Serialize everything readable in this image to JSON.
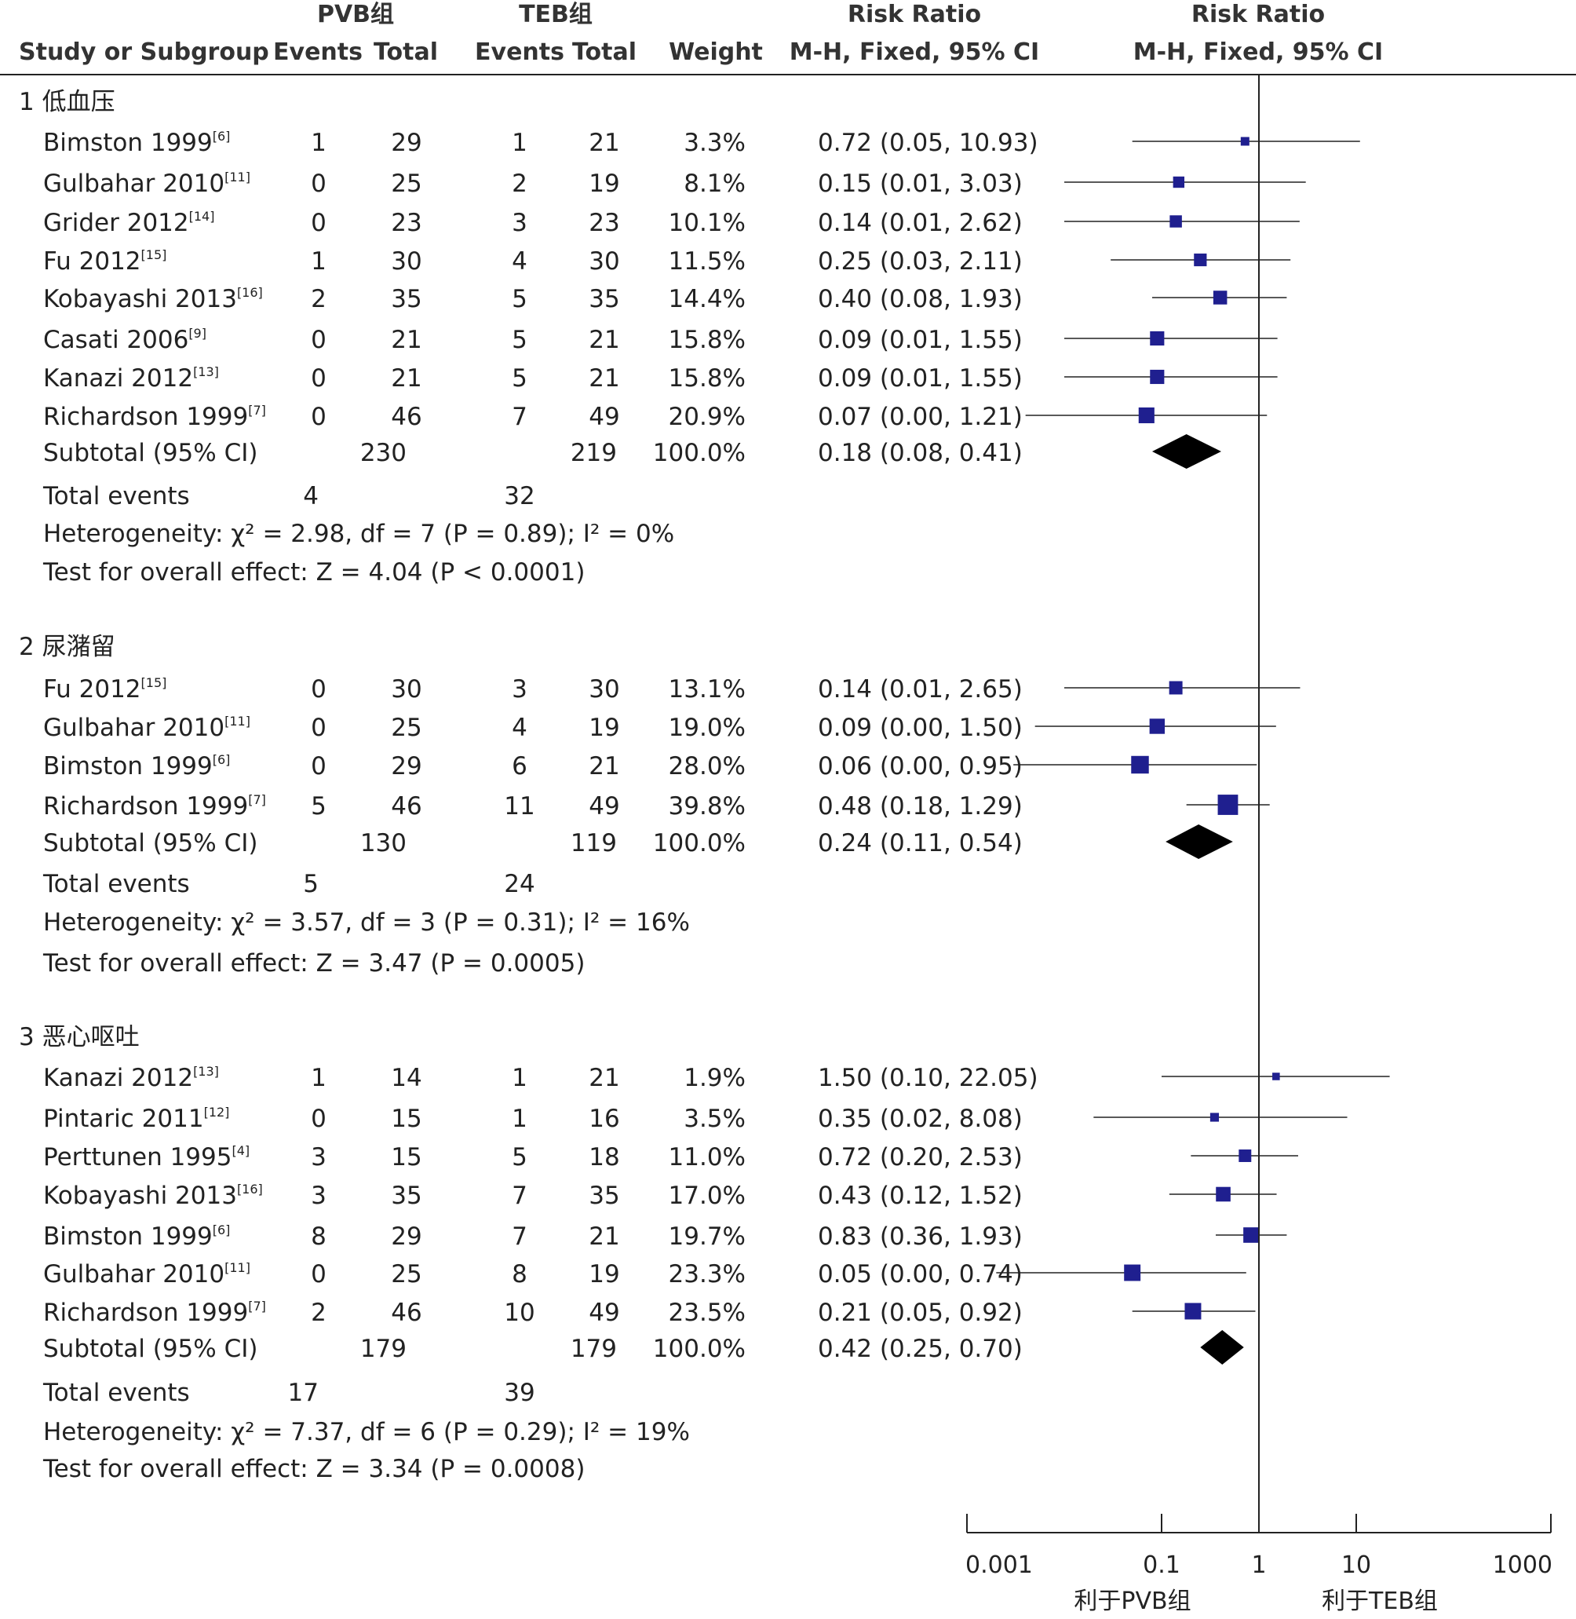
{
  "chart_data": {
    "type": "forest",
    "x_scale": "log",
    "xlim": [
      0.001,
      1000
    ],
    "x_ticks": [
      "0.001",
      "0.1",
      "1",
      "10",
      "1000"
    ],
    "favours_left": "利于PVB组",
    "favours_right": "利于TEB组",
    "headers": {
      "group1": "PVB组",
      "group2": "TEB组",
      "study": "Study or Subgroup",
      "events": "Events",
      "total": "Total",
      "weight": "Weight",
      "rr_title": "Risk Ratio",
      "rr_method": "M-H, Fixed, 95% CI"
    },
    "subgroups": [
      {
        "label": "1 低血压",
        "studies": [
          {
            "name": "Bimston 1999",
            "ref": "[6]",
            "e1": "1",
            "n1": "29",
            "e2": "1",
            "n2": "21",
            "weight": "3.3%",
            "ci_text": "0.72 (0.05, 10.93)",
            "rr": 0.72,
            "lo": 0.05,
            "hi": 10.93,
            "w": 3.3
          },
          {
            "name": "Gulbahar 2010",
            "ref": "[11]",
            "e1": "0",
            "n1": "25",
            "e2": "2",
            "n2": "19",
            "weight": "8.1%",
            "ci_text": "0.15 (0.01, 3.03)",
            "rr": 0.15,
            "lo": 0.01,
            "hi": 3.03,
            "w": 8.1
          },
          {
            "name": "Grider 2012",
            "ref": "[14]",
            "e1": "0",
            "n1": "23",
            "e2": "3",
            "n2": "23",
            "weight": "10.1%",
            "ci_text": "0.14 (0.01, 2.62)",
            "rr": 0.14,
            "lo": 0.01,
            "hi": 2.62,
            "w": 10.1
          },
          {
            "name": "Fu 2012",
            "ref": "[15]",
            "e1": "1",
            "n1": "30",
            "e2": "4",
            "n2": "30",
            "weight": "11.5%",
            "ci_text": "0.25 (0.03, 2.11)",
            "rr": 0.25,
            "lo": 0.03,
            "hi": 2.11,
            "w": 11.5
          },
          {
            "name": "Kobayashi 2013",
            "ref": "[16]",
            "e1": "2",
            "n1": "35",
            "e2": "5",
            "n2": "35",
            "weight": "14.4%",
            "ci_text": "0.40 (0.08, 1.93)",
            "rr": 0.4,
            "lo": 0.08,
            "hi": 1.93,
            "w": 14.4
          },
          {
            "name": "Casati 2006",
            "ref": "[9]",
            "e1": "0",
            "n1": "21",
            "e2": "5",
            "n2": "21",
            "weight": "15.8%",
            "ci_text": "0.09 (0.01, 1.55)",
            "rr": 0.09,
            "lo": 0.01,
            "hi": 1.55,
            "w": 15.8
          },
          {
            "name": "Kanazi 2012",
            "ref": "[13]",
            "e1": "0",
            "n1": "21",
            "e2": "5",
            "n2": "21",
            "weight": "15.8%",
            "ci_text": "0.09 (0.01, 1.55)",
            "rr": 0.09,
            "lo": 0.01,
            "hi": 1.55,
            "w": 15.8
          },
          {
            "name": "Richardson 1999",
            "ref": "[7]",
            "e1": "0",
            "n1": "46",
            "e2": "7",
            "n2": "49",
            "weight": "20.9%",
            "ci_text": "0.07 (0.00, 1.21)",
            "rr": 0.07,
            "lo": 0.004,
            "hi": 1.21,
            "w": 20.9
          }
        ],
        "subtotal": {
          "label": "Subtotal (95% CI)",
          "n1": "230",
          "n2": "219",
          "weight": "100.0%",
          "ci_text": "0.18 (0.08, 0.41)",
          "rr": 0.18,
          "lo": 0.08,
          "hi": 0.41
        },
        "total_events": {
          "label": "Total events",
          "e1": "4",
          "e2": "32"
        },
        "heterogeneity": "Heterogeneity: χ² = 2.98, df = 7 (P = 0.89); I² = 0%",
        "overall": "Test for overall effect: Z = 4.04 (P < 0.0001)"
      },
      {
        "label": "2 尿潴留",
        "studies": [
          {
            "name": "Fu 2012",
            "ref": "[15]",
            "e1": "0",
            "n1": "30",
            "e2": "3",
            "n2": "30",
            "weight": "13.1%",
            "ci_text": "0.14 (0.01, 2.65)",
            "rr": 0.14,
            "lo": 0.01,
            "hi": 2.65,
            "w": 13.1
          },
          {
            "name": "Gulbahar 2010",
            "ref": "[11]",
            "e1": "0",
            "n1": "25",
            "e2": "4",
            "n2": "19",
            "weight": "19.0%",
            "ci_text": "0.09 (0.00, 1.50)",
            "rr": 0.09,
            "lo": 0.005,
            "hi": 1.5,
            "w": 19.0
          },
          {
            "name": "Bimston 1999",
            "ref": "[6]",
            "e1": "0",
            "n1": "29",
            "e2": "6",
            "n2": "21",
            "weight": "28.0%",
            "ci_text": "0.06 (0.00, 0.95)",
            "rr": 0.06,
            "lo": 0.003,
            "hi": 0.95,
            "w": 28.0
          },
          {
            "name": "Richardson 1999",
            "ref": "[7]",
            "e1": "5",
            "n1": "46",
            "e2": "11",
            "n2": "49",
            "weight": "39.8%",
            "ci_text": "0.48 (0.18, 1.29)",
            "rr": 0.48,
            "lo": 0.18,
            "hi": 1.29,
            "w": 39.8
          }
        ],
        "subtotal": {
          "label": "Subtotal (95% CI)",
          "n1": "130",
          "n2": "119",
          "weight": "100.0%",
          "ci_text": "0.24 (0.11, 0.54)",
          "rr": 0.24,
          "lo": 0.11,
          "hi": 0.54
        },
        "total_events": {
          "label": "Total events",
          "e1": "5",
          "e2": "24"
        },
        "heterogeneity": "Heterogeneity: χ² = 3.57, df = 3 (P = 0.31); I² = 16%",
        "overall": "Test for overall effect: Z = 3.47 (P = 0.0005)"
      },
      {
        "label": "3 恶心呕吐",
        "studies": [
          {
            "name": "Kanazi 2012",
            "ref": "[13]",
            "e1": "1",
            "n1": "14",
            "e2": "1",
            "n2": "21",
            "weight": "1.9%",
            "ci_text": "1.50 (0.10, 22.05)",
            "rr": 1.5,
            "lo": 0.1,
            "hi": 22.05,
            "w": 1.9
          },
          {
            "name": "Pintaric 2011",
            "ref": "[12]",
            "e1": "0",
            "n1": "15",
            "e2": "1",
            "n2": "16",
            "weight": "3.5%",
            "ci_text": "0.35 (0.02, 8.08)",
            "rr": 0.35,
            "lo": 0.02,
            "hi": 8.08,
            "w": 3.5
          },
          {
            "name": "Perttunen 1995",
            "ref": "[4]",
            "e1": "3",
            "n1": "15",
            "e2": "5",
            "n2": "18",
            "weight": "11.0%",
            "ci_text": "0.72 (0.20, 2.53)",
            "rr": 0.72,
            "lo": 0.2,
            "hi": 2.53,
            "w": 11.0
          },
          {
            "name": "Kobayashi 2013",
            "ref": "[16]",
            "e1": "3",
            "n1": "35",
            "e2": "7",
            "n2": "35",
            "weight": "17.0%",
            "ci_text": "0.43 (0.12, 1.52)",
            "rr": 0.43,
            "lo": 0.12,
            "hi": 1.52,
            "w": 17.0
          },
          {
            "name": "Bimston 1999",
            "ref": "[6]",
            "e1": "8",
            "n1": "29",
            "e2": "7",
            "n2": "21",
            "weight": "19.7%",
            "ci_text": "0.83 (0.36, 1.93)",
            "rr": 0.83,
            "lo": 0.36,
            "hi": 1.93,
            "w": 19.7
          },
          {
            "name": "Gulbahar 2010",
            "ref": "[11]",
            "e1": "0",
            "n1": "25",
            "e2": "8",
            "n2": "19",
            "weight": "23.3%",
            "ci_text": "0.05 (0.00, 0.74)",
            "rr": 0.05,
            "lo": 0.002,
            "hi": 0.74,
            "w": 23.3
          },
          {
            "name": "Richardson 1999",
            "ref": "[7]",
            "e1": "2",
            "n1": "46",
            "e2": "10",
            "n2": "49",
            "weight": "23.5%",
            "ci_text": "0.21 (0.05, 0.92)",
            "rr": 0.21,
            "lo": 0.05,
            "hi": 0.92,
            "w": 23.5
          }
        ],
        "subtotal": {
          "label": "Subtotal (95% CI)",
          "n1": "179",
          "n2": "179",
          "weight": "100.0%",
          "ci_text": "0.42 (0.25, 0.70)",
          "rr": 0.42,
          "lo": 0.25,
          "hi": 0.7
        },
        "total_events": {
          "label": "Total events",
          "e1": "17",
          "e2": "39"
        },
        "heterogeneity": "Heterogeneity: χ² = 7.37, df = 6 (P = 0.29); I² = 19%",
        "overall": "Test for overall effect: Z = 3.34 (P = 0.0008)"
      }
    ],
    "colors": {
      "point": "#1f1f8f",
      "diamond": "#000000",
      "line": "#222222",
      "subtotal_text": "#777777"
    }
  }
}
